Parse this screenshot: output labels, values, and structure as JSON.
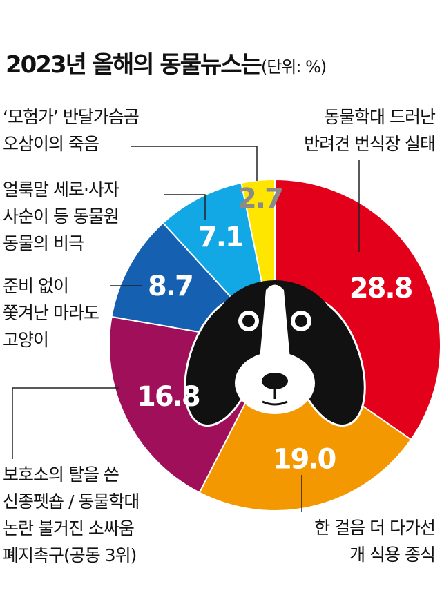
{
  "chart_data": {
    "type": "pie",
    "title": "2023년 올해의 동물뉴스는",
    "subtitle": "(단위: %)",
    "categories": [
      "동물학대 드러난\n반려견 번식장 실태",
      "한 걸음 더 다가선\n개 식용 종식",
      "보호소의 탈을 쓴\n신종펫숍 / 동물학대\n논란 불거진 소싸움\n폐지촉구(공동 3위)",
      "준비 없이\n쫓겨난 마라도\n고양이",
      "얼룩말 세로·사자\n사순이 등 동물원\n동물의 비극",
      "‘모험가’ 반달가슴곰\n오삼이의 죽음"
    ],
    "values": [
      28.8,
      19.0,
      16.8,
      8.7,
      7.1,
      2.7
    ],
    "value_labels": [
      "28.8",
      "19.0",
      "16.8",
      "8.7",
      "7.1",
      "2.7"
    ],
    "colors": [
      "#e3001b",
      "#f39800",
      "#a0105a",
      "#1560b0",
      "#12a8e6",
      "#ffe600"
    ],
    "value_label_colors": [
      "#ffffff",
      "#ffffff",
      "#ffffff",
      "#ffffff",
      "#ffffff",
      "#8a8a8a"
    ]
  }
}
